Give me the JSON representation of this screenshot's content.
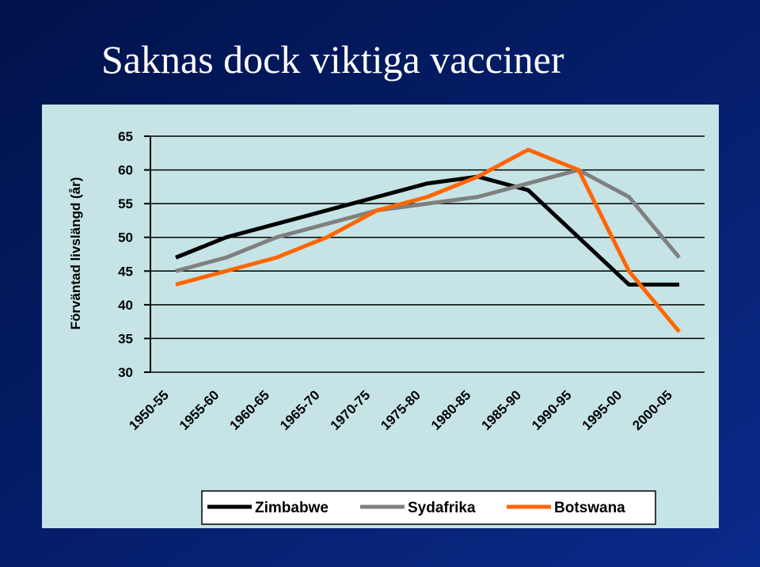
{
  "chart_data": {
    "type": "line",
    "title": "Saknas dock viktiga vacciner",
    "y_label": "Förväntad livslängd (år)",
    "categories": [
      "1950-55",
      "1955-60",
      "1960-65",
      "1965-70",
      "1970-75",
      "1975-80",
      "1980-85",
      "1985-90",
      "1990-95",
      "1995-00",
      "2000-05"
    ],
    "series": [
      {
        "name": "Zimbabwe",
        "color": "#000000",
        "values": [
          47,
          50,
          52,
          54,
          56,
          58,
          59,
          57,
          50,
          43,
          43
        ]
      },
      {
        "name": "Sydafrika",
        "color": "#808080",
        "values": [
          45,
          47,
          50,
          52,
          54,
          55,
          56,
          58,
          60,
          56,
          47
        ]
      },
      {
        "name": "Botswana",
        "color": "#ff6600",
        "values": [
          43,
          45,
          47,
          50,
          54,
          56,
          59,
          63,
          60,
          45,
          36
        ]
      }
    ],
    "ylim": [
      30,
      65
    ],
    "yticks": [
      30,
      35,
      40,
      45,
      50,
      55,
      60,
      65
    ],
    "grid": true,
    "legend": "bottom"
  }
}
